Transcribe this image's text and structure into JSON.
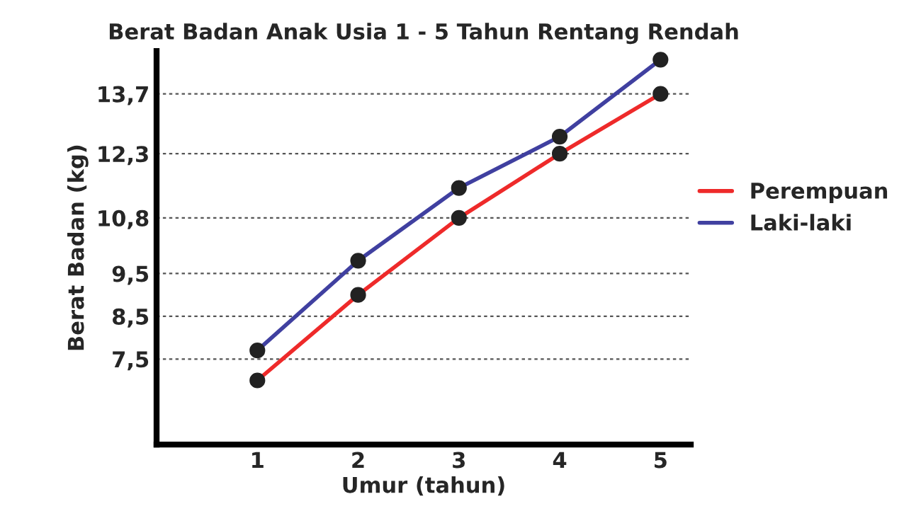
{
  "chart_data": {
    "type": "line",
    "title": "Berat Badan Anak Usia 1 - 5 Tahun Rentang Rendah",
    "xlabel": "Umur (tahun)",
    "ylabel": "Berat Badan (kg)",
    "x": [
      1,
      2,
      3,
      4,
      5
    ],
    "series": [
      {
        "name": "Perempuan",
        "color": "#ee2a2a",
        "values": [
          7.0,
          9.0,
          10.8,
          12.3,
          13.7
        ]
      },
      {
        "name": "Laki-laki",
        "color": "#4040a0",
        "values": [
          7.7,
          9.8,
          11.5,
          12.7,
          14.5
        ]
      }
    ],
    "xlim": [
      0,
      5.3
    ],
    "xticks": [
      1,
      2,
      3,
      4,
      5
    ],
    "ylim": [
      5.5,
      14.7
    ],
    "yticks": [
      {
        "value": 7.5,
        "label": "7,5"
      },
      {
        "value": 8.5,
        "label": "8,5"
      },
      {
        "value": 9.5,
        "label": "9,5"
      },
      {
        "value": 10.8,
        "label": "10,8"
      },
      {
        "value": 12.3,
        "label": "12,3"
      },
      {
        "value": 13.7,
        "label": "13,7"
      }
    ],
    "grid": "y",
    "legend": "right",
    "marker": "circle",
    "line_style": "solid"
  }
}
